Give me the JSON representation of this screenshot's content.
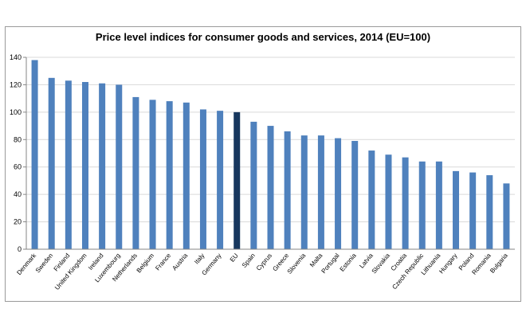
{
  "chart_data": {
    "type": "bar",
    "title": "Price level indices for consumer goods and services, 2014 (EU=100)",
    "xlabel": "",
    "ylabel": "",
    "ylim": [
      0,
      140
    ],
    "yticks": [
      0,
      20,
      40,
      60,
      80,
      100,
      120,
      140
    ],
    "grid": true,
    "legend": "none",
    "colors": {
      "bar": "#4f81bd",
      "highlight": "#17375e",
      "grid": "#d9d9d9"
    },
    "highlight_category": "EU",
    "categories": [
      "Denmark",
      "Sweden",
      "Finland",
      "United Kingdom",
      "Ireland",
      "Luxembourg",
      "Netherlands",
      "Belgium",
      "France",
      "Austria",
      "Italy",
      "Germany",
      "EU",
      "Spain",
      "Cyprus",
      "Greece",
      "Slovenia",
      "Malta",
      "Portugal",
      "Estonia",
      "Latvia",
      "Slovakia",
      "Croatia",
      "Czech Republic",
      "Lithuania",
      "Hungary",
      "Poland",
      "Romania",
      "Bulgaria"
    ],
    "values": [
      138,
      125,
      123,
      122,
      121,
      120,
      111,
      109,
      108,
      107,
      102,
      101,
      100,
      93,
      90,
      86,
      83,
      83,
      81,
      79,
      72,
      69,
      67,
      64,
      64,
      57,
      56,
      54,
      48
    ]
  }
}
